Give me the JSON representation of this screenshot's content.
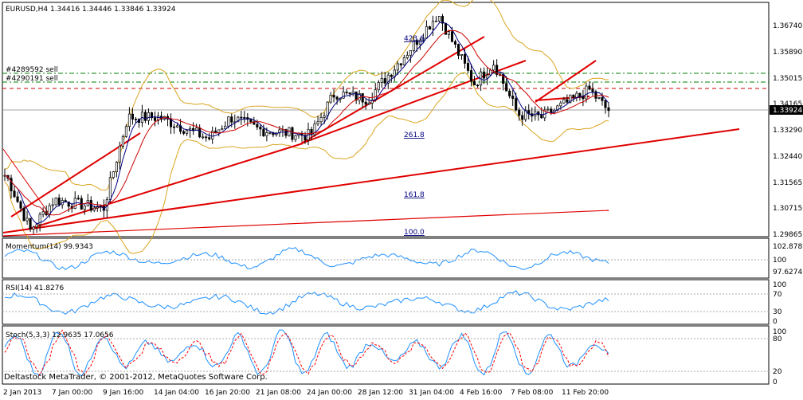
{
  "header": {
    "symbol_line": "EURUSD,H4  1.34416 1.34446 1.33846 1.33924"
  },
  "orders": [
    "#4289592 sell",
    "#4290191 sell"
  ],
  "fib_labels": [
    "423.6",
    "261.8",
    "161.8",
    "100.0"
  ],
  "current_price": "1.33924",
  "main_axis_labels": [
    "1.36740",
    "1.35890",
    "1.35015",
    "1.34165",
    "1.33290",
    "1.32440",
    "1.31565",
    "1.30715",
    "1.29865"
  ],
  "momentum": {
    "label": "Momentum(14) 99.9343",
    "axis": [
      "102.8789",
      "100",
      "97.6274"
    ]
  },
  "rsi": {
    "label": "RSI(14) 41.8276",
    "axis": [
      "100",
      "70",
      "30",
      "0"
    ]
  },
  "stoch": {
    "label": "Stoch(5,3,3) 12.9635 17.0656",
    "axis": [
      "100",
      "80",
      "20",
      "0"
    ]
  },
  "time_labels": [
    "2 Jan 2013",
    "7 Jan 00:00",
    "9 Jan 16:00",
    "14 Jan 04:00",
    "16 Jan 20:00",
    "21 Jan 08:00",
    "24 Jan 00:00",
    "28 Jan 12:00",
    "31 Jan 04:00",
    "4 Feb 16:00",
    "7 Feb 08:00",
    "11 Feb 20:00"
  ],
  "copyright": "Deltastock MetaTrader, © 2001-2012, MetaQuotes Software Corp.",
  "colors": {
    "bull": "#000000",
    "bear": "#000000",
    "ma_fast": "#000080",
    "ma_slow": "#cc0000",
    "bollinger": "#daa520",
    "trendline": "#e00000",
    "indicator": "#1e90ff",
    "signal": "#ff0000",
    "order_green": "#008000",
    "order_red": "#cc0000",
    "fib": "#000080"
  },
  "chart_data": {
    "type": "candlestick",
    "symbol": "EURUSD",
    "timeframe": "H4",
    "open": 1.34416,
    "high": 1.34446,
    "low": 1.33846,
    "close": 1.33924,
    "ylim": [
      1.29865,
      1.3674
    ],
    "key_points": [
      {
        "time": "2 Jan 2013",
        "price": 1.318
      },
      {
        "time": "4 Jan",
        "price": 1.3
      },
      {
        "time": "7 Jan 00:00",
        "price": 1.31
      },
      {
        "time": "9 Jan 16:00",
        "price": 1.307
      },
      {
        "time": "11 Jan",
        "price": 1.337
      },
      {
        "time": "14 Jan 04:00",
        "price": 1.337
      },
      {
        "time": "16 Jan 20:00",
        "price": 1.33
      },
      {
        "time": "18 Jan",
        "price": 1.337
      },
      {
        "time": "21 Jan 08:00",
        "price": 1.333
      },
      {
        "time": "24 Jan 00:00",
        "price": 1.331
      },
      {
        "time": "25 Jan",
        "price": 1.345
      },
      {
        "time": "28 Jan 12:00",
        "price": 1.343
      },
      {
        "time": "30 Jan",
        "price": 1.358
      },
      {
        "time": "1 Feb",
        "price": 1.371
      },
      {
        "time": "4 Feb 16:00",
        "price": 1.348
      },
      {
        "time": "6 Feb",
        "price": 1.355
      },
      {
        "time": "7 Feb 08:00",
        "price": 1.338
      },
      {
        "time": "8 Feb",
        "price": 1.337
      },
      {
        "time": "11 Feb 20:00",
        "price": 1.346
      },
      {
        "time": "13 Feb",
        "price": 1.339
      }
    ]
  }
}
